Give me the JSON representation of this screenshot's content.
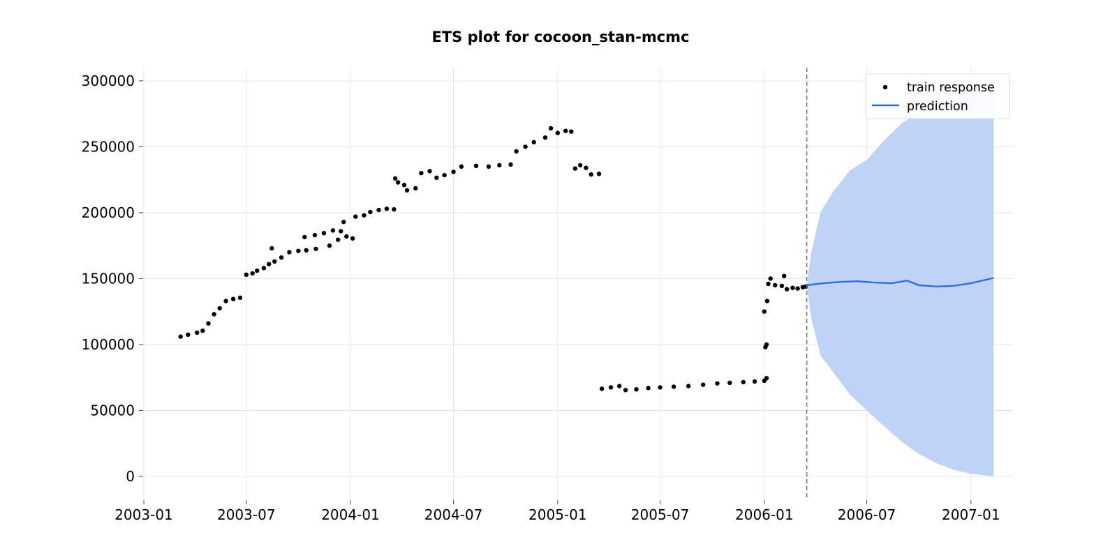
{
  "chart_data": {
    "type": "scatter",
    "title": "ETS plot for cocoon_stan-mcmc",
    "xlabel": "",
    "ylabel": "",
    "xlim": [
      "2003-01-01",
      "2007-03-15"
    ],
    "ylim": [
      -18000,
      310000
    ],
    "x_ticks": [
      "2003-01",
      "2003-07",
      "2004-01",
      "2004-07",
      "2005-01",
      "2005-07",
      "2006-01",
      "2006-07",
      "2007-01"
    ],
    "y_ticks": [
      0,
      50000,
      100000,
      150000,
      200000,
      250000,
      300000
    ],
    "grid": true,
    "legend_position": "top-right",
    "forecast_start": "2006-03-17",
    "colors": {
      "train": "#000000",
      "prediction": "#2b6ee8",
      "interval": "#bfd3f7",
      "vline": "#777777"
    },
    "series": [
      {
        "name": "train response",
        "kind": "scatter",
        "points": [
          [
            "2003-03-07",
            106000
          ],
          [
            "2003-03-20",
            107500
          ],
          [
            "2003-04-05",
            109000
          ],
          [
            "2003-04-15",
            110500
          ],
          [
            "2003-04-25",
            116000
          ],
          [
            "2003-05-05",
            123000
          ],
          [
            "2003-05-15",
            127500
          ],
          [
            "2003-05-26",
            133000
          ],
          [
            "2003-06-08",
            134500
          ],
          [
            "2003-06-20",
            135500
          ],
          [
            "2003-07-01",
            153000
          ],
          [
            "2003-07-12",
            154000
          ],
          [
            "2003-07-20",
            156000
          ],
          [
            "2003-08-01",
            158000
          ],
          [
            "2003-08-10",
            161000
          ],
          [
            "2003-08-20",
            163000
          ],
          [
            "2003-08-15",
            173000
          ],
          [
            "2003-09-01",
            166000
          ],
          [
            "2003-09-15",
            170000
          ],
          [
            "2003-10-01",
            171000
          ],
          [
            "2003-10-15",
            171500
          ],
          [
            "2003-10-12",
            181500
          ],
          [
            "2003-10-30",
            183000
          ],
          [
            "2003-11-01",
            172500
          ],
          [
            "2003-11-15",
            184500
          ],
          [
            "2003-12-01",
            186500
          ],
          [
            "2003-11-25",
            175000
          ],
          [
            "2003-12-15",
            186000
          ],
          [
            "2003-12-10",
            179500
          ],
          [
            "2003-12-25",
            182000
          ],
          [
            "2004-01-05",
            180500
          ],
          [
            "2003-12-20",
            193000
          ],
          [
            "2004-01-10",
            197000
          ],
          [
            "2004-01-25",
            198000
          ],
          [
            "2004-02-05",
            200500
          ],
          [
            "2004-02-20",
            202000
          ],
          [
            "2004-03-05",
            203000
          ],
          [
            "2004-03-18",
            202500
          ],
          [
            "2004-03-20",
            226000
          ],
          [
            "2004-03-25",
            223000
          ],
          [
            "2004-04-05",
            221000
          ],
          [
            "2004-04-10",
            217000
          ],
          [
            "2004-04-25",
            218500
          ],
          [
            "2004-05-05",
            230000
          ],
          [
            "2004-05-20",
            231500
          ],
          [
            "2004-06-01",
            226500
          ],
          [
            "2004-06-15",
            228500
          ],
          [
            "2004-07-01",
            231000
          ],
          [
            "2004-07-15",
            235000
          ],
          [
            "2004-08-10",
            235500
          ],
          [
            "2004-09-01",
            235000
          ],
          [
            "2004-09-20",
            236000
          ],
          [
            "2004-10-10",
            236500
          ],
          [
            "2004-10-20",
            246500
          ],
          [
            "2004-11-05",
            250000
          ],
          [
            "2004-11-20",
            253500
          ],
          [
            "2004-12-10",
            257000
          ],
          [
            "2004-12-20",
            264000
          ],
          [
            "2005-01-01",
            260500
          ],
          [
            "2005-01-15",
            262000
          ],
          [
            "2005-01-25",
            261500
          ],
          [
            "2005-02-01",
            233500
          ],
          [
            "2005-02-10",
            236000
          ],
          [
            "2005-02-20",
            234000
          ],
          [
            "2005-03-01",
            229000
          ],
          [
            "2005-03-15",
            229500
          ],
          [
            "2005-03-20",
            66500
          ],
          [
            "2005-04-05",
            67500
          ],
          [
            "2005-04-20",
            68500
          ],
          [
            "2005-05-01",
            65500
          ],
          [
            "2005-05-20",
            66000
          ],
          [
            "2005-06-10",
            67000
          ],
          [
            "2005-07-01",
            67500
          ],
          [
            "2005-07-25",
            68000
          ],
          [
            "2005-08-20",
            68500
          ],
          [
            "2005-09-15",
            69500
          ],
          [
            "2005-10-10",
            70500
          ],
          [
            "2005-11-01",
            71000
          ],
          [
            "2005-11-25",
            71500
          ],
          [
            "2005-12-15",
            72000
          ],
          [
            "2006-01-01",
            72500
          ],
          [
            "2006-01-05",
            74500
          ],
          [
            "2006-01-01",
            125000
          ],
          [
            "2006-01-03",
            98000
          ],
          [
            "2006-01-05",
            100000
          ],
          [
            "2006-01-06",
            133000
          ],
          [
            "2006-01-08",
            146000
          ],
          [
            "2006-01-12",
            150000
          ],
          [
            "2006-01-20",
            145000
          ],
          [
            "2006-02-01",
            144500
          ],
          [
            "2006-02-05",
            152000
          ],
          [
            "2006-02-10",
            142000
          ],
          [
            "2006-02-20",
            143000
          ],
          [
            "2006-03-01",
            142500
          ],
          [
            "2006-03-10",
            143500
          ],
          [
            "2006-03-15",
            144000
          ]
        ]
      },
      {
        "name": "prediction",
        "kind": "line",
        "points": [
          [
            "2006-03-17",
            145000
          ],
          [
            "2006-04-15",
            146500
          ],
          [
            "2006-05-15",
            147500
          ],
          [
            "2006-06-15",
            148000
          ],
          [
            "2006-07-15",
            147000
          ],
          [
            "2006-08-15",
            146500
          ],
          [
            "2006-09-10",
            148500
          ],
          [
            "2006-10-01",
            145000
          ],
          [
            "2006-11-01",
            144000
          ],
          [
            "2006-12-01",
            144500
          ],
          [
            "2007-01-01",
            146500
          ],
          [
            "2007-02-10",
            150500
          ]
        ]
      },
      {
        "name": "interval",
        "kind": "band",
        "upper": [
          [
            "2006-03-17",
            145000
          ],
          [
            "2006-03-25",
            170000
          ],
          [
            "2006-04-10",
            200000
          ],
          [
            "2006-05-01",
            215000
          ],
          [
            "2006-06-01",
            232000
          ],
          [
            "2006-07-01",
            240000
          ],
          [
            "2006-08-01",
            255000
          ],
          [
            "2006-09-01",
            268000
          ],
          [
            "2006-10-01",
            276000
          ],
          [
            "2006-11-01",
            282000
          ],
          [
            "2006-12-01",
            287000
          ],
          [
            "2007-01-01",
            289000
          ],
          [
            "2007-02-10",
            291000
          ]
        ],
        "lower": [
          [
            "2006-03-17",
            145000
          ],
          [
            "2006-03-25",
            120000
          ],
          [
            "2006-04-10",
            92000
          ],
          [
            "2006-05-01",
            80000
          ],
          [
            "2006-06-01",
            62000
          ],
          [
            "2006-07-01",
            50000
          ],
          [
            "2006-08-01",
            38000
          ],
          [
            "2006-09-01",
            26000
          ],
          [
            "2006-10-01",
            17000
          ],
          [
            "2006-11-01",
            10000
          ],
          [
            "2006-12-01",
            5000
          ],
          [
            "2007-01-01",
            2000
          ],
          [
            "2007-02-10",
            0
          ]
        ]
      }
    ]
  }
}
